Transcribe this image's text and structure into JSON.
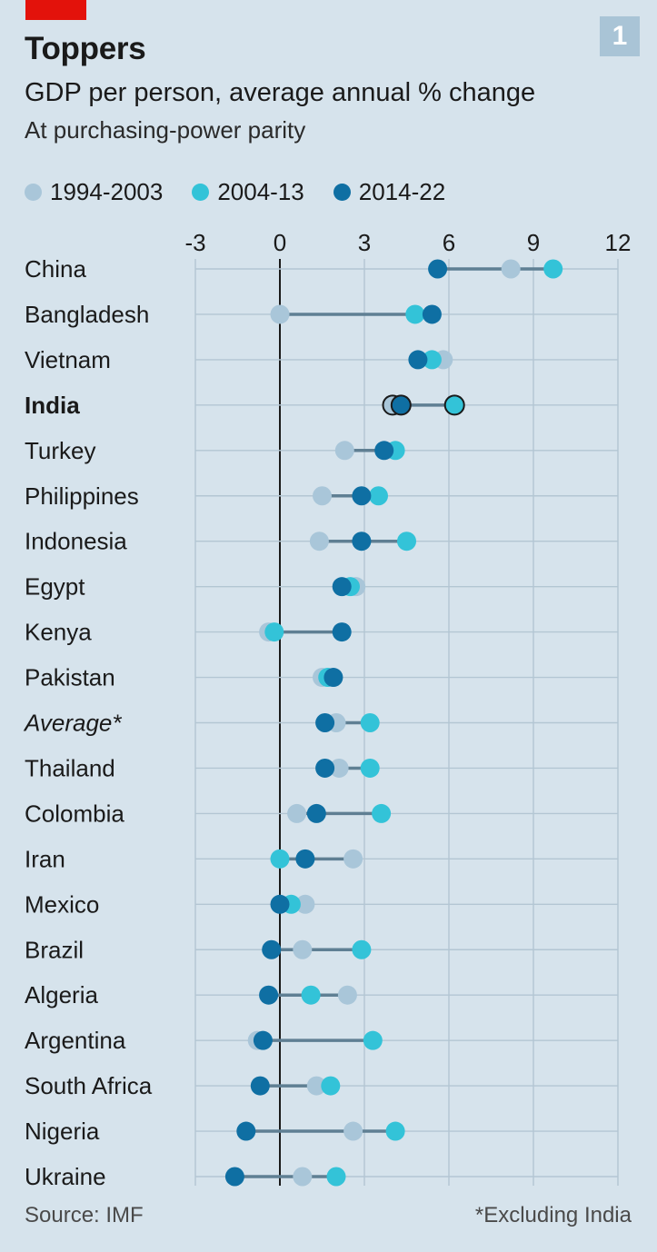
{
  "header": {
    "chart_number": "1",
    "title": "Toppers",
    "subtitle": "GDP per person, average annual % change",
    "subsubtitle": "At purchasing-power parity"
  },
  "colors": {
    "background": "#d6e3ec",
    "gridline": "#b3c6d3",
    "zero_line": "#1a1a1a",
    "connector": "#5f7f93",
    "s1994": "#a9c6d9",
    "s2004": "#33c3d8",
    "s2014": "#0f6fa3",
    "brand": "#e3120b"
  },
  "legend": [
    {
      "label": "1994-2003",
      "color": "#a9c6d9"
    },
    {
      "label": "2004-13",
      "color": "#33c3d8"
    },
    {
      "label": "2014-22",
      "color": "#0f6fa3"
    }
  ],
  "footer": {
    "source": "Source: IMF",
    "note": "*Excluding India"
  },
  "chart_data": {
    "type": "dot-plot",
    "title": "Toppers",
    "subtitle": "GDP per person, average annual % change",
    "xlim": [
      -3,
      12
    ],
    "xticks": [
      -3,
      0,
      3,
      6,
      9,
      12
    ],
    "tick_labels": [
      "-3",
      "0",
      "3",
      "6",
      "9",
      "12"
    ],
    "series_names": [
      "1994-2003",
      "2004-13",
      "2014-22"
    ],
    "categories": [
      "China",
      "Bangladesh",
      "Vietnam",
      "India",
      "Turkey",
      "Philippines",
      "Indonesia",
      "Egypt",
      "Kenya",
      "Pakistan",
      "Average*",
      "Thailand",
      "Colombia",
      "Iran",
      "Mexico",
      "Brazil",
      "Algeria",
      "Argentina",
      "South Africa",
      "Nigeria",
      "Ukraine"
    ],
    "styles": [
      "normal",
      "normal",
      "normal",
      "bold",
      "normal",
      "normal",
      "normal",
      "normal",
      "normal",
      "normal",
      "italic",
      "normal",
      "normal",
      "normal",
      "normal",
      "normal",
      "normal",
      "normal",
      "normal",
      "normal",
      "normal"
    ],
    "highlight": "India",
    "series": [
      {
        "name": "1994-2003",
        "values": [
          8.2,
          0.0,
          5.8,
          4.0,
          2.3,
          1.5,
          1.4,
          2.7,
          -0.4,
          1.5,
          2.0,
          2.1,
          0.6,
          2.6,
          0.9,
          0.8,
          2.4,
          -0.8,
          1.3,
          2.6,
          0.8
        ]
      },
      {
        "name": "2004-13",
        "values": [
          9.7,
          4.8,
          5.4,
          6.2,
          4.1,
          3.5,
          4.5,
          2.5,
          -0.2,
          1.7,
          3.2,
          3.2,
          3.6,
          0.0,
          0.4,
          2.9,
          1.1,
          3.3,
          1.8,
          4.1,
          2.0
        ]
      },
      {
        "name": "2014-22",
        "values": [
          5.6,
          5.4,
          4.9,
          4.3,
          3.7,
          2.9,
          2.9,
          2.2,
          2.2,
          1.9,
          1.6,
          1.6,
          1.3,
          0.9,
          0.0,
          -0.3,
          -0.4,
          -0.6,
          -0.7,
          -1.2,
          -1.6
        ]
      }
    ]
  }
}
